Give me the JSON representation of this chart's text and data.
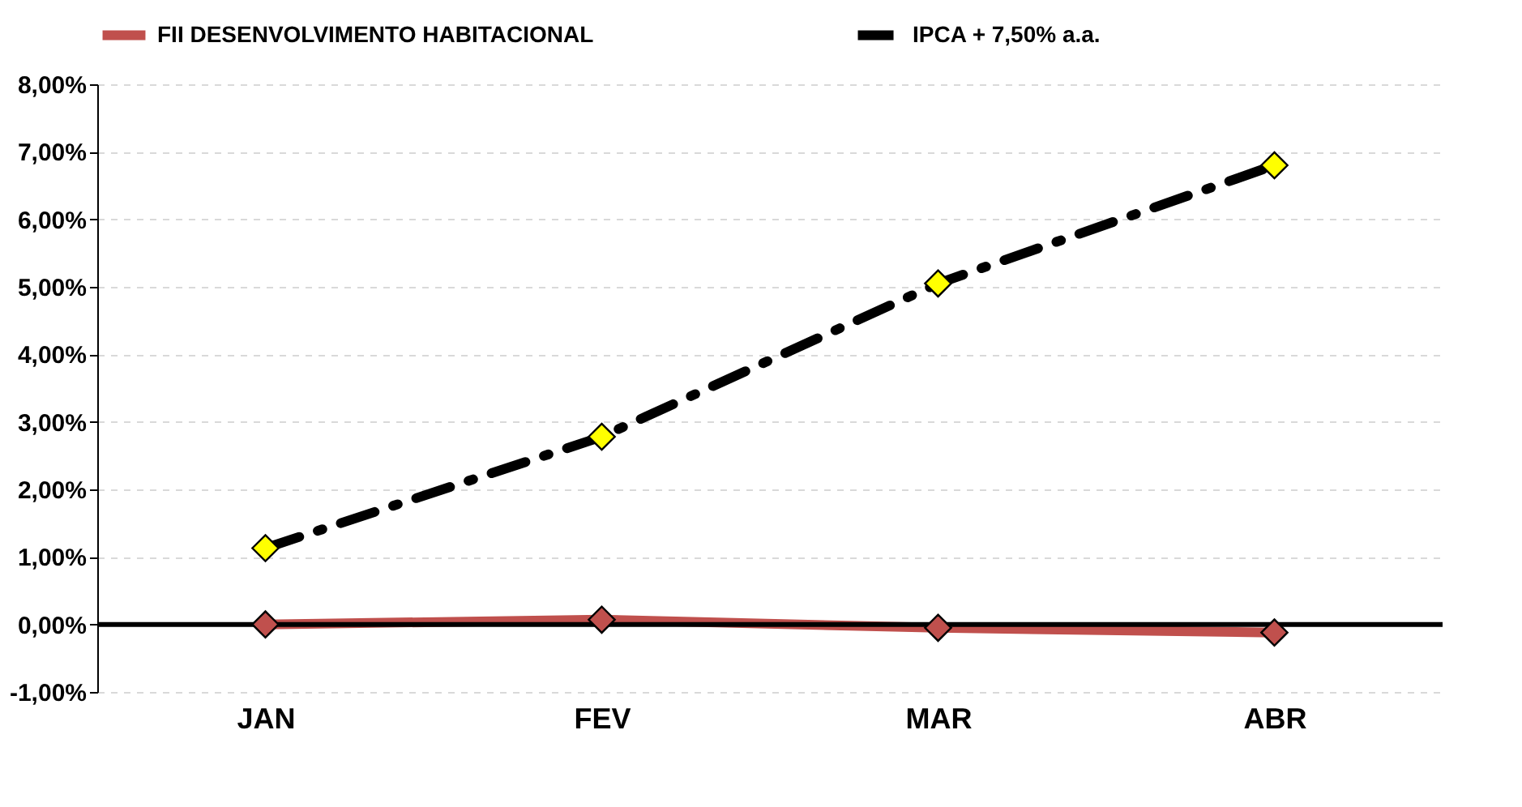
{
  "chart_data": {
    "type": "line",
    "categories": [
      "JAN",
      "FEV",
      "MAR",
      "ABR"
    ],
    "series": [
      {
        "name": "FII DESENVOLVIMENTO HABITACIONAL",
        "color": "#c0504d",
        "line_style": "solid",
        "values": [
          0.0,
          0.07,
          -0.05,
          -0.12
        ]
      },
      {
        "name": "IPCA + 7,50% a.a.",
        "color": "#000000",
        "colors": [
          "#ffff00",
          "#ffff00",
          "#ffff00",
          "#ffff00"
        ],
        "line_style": "dashed",
        "values": [
          1.13,
          2.78,
          5.05,
          6.8
        ]
      }
    ],
    "ylim": [
      -1,
      8
    ],
    "yticks": [
      {
        "value": -1,
        "label": "-1,00%"
      },
      {
        "value": 0,
        "label": "0,00%"
      },
      {
        "value": 1,
        "label": "1,00%"
      },
      {
        "value": 2,
        "label": "2,00%"
      },
      {
        "value": 3,
        "label": "3,00%"
      },
      {
        "value": 4,
        "label": "4,00%"
      },
      {
        "value": 5,
        "label": "5,00%"
      },
      {
        "value": 6,
        "label": "6,00%"
      },
      {
        "value": 7,
        "label": "7,00%"
      },
      {
        "value": 8,
        "label": "8,00%"
      }
    ],
    "ref_lines": [
      {
        "axis": "y",
        "value": 0,
        "color": "#000000"
      }
    ],
    "grid": "y",
    "marker": "diamond",
    "legend": "top"
  }
}
